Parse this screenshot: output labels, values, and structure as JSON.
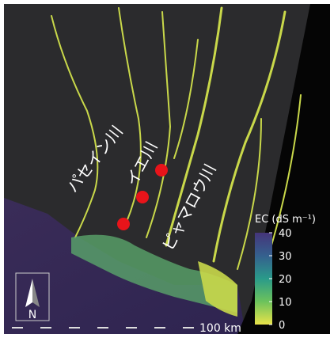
{
  "map": {
    "labels": [
      "パセイン川",
      "イエ川",
      "ピャマロウ川"
    ],
    "north": "N",
    "scale_bar": "100 km",
    "legend": {
      "title": "EC (dS m⁻¹)",
      "lim": [
        0,
        40
      ],
      "ticks": [
        0,
        10,
        20,
        30,
        40
      ],
      "colors": [
        "#e8e34a",
        "#6cc25c",
        "#2a9a8a",
        "#35608e",
        "#45357a"
      ]
    }
  }
}
